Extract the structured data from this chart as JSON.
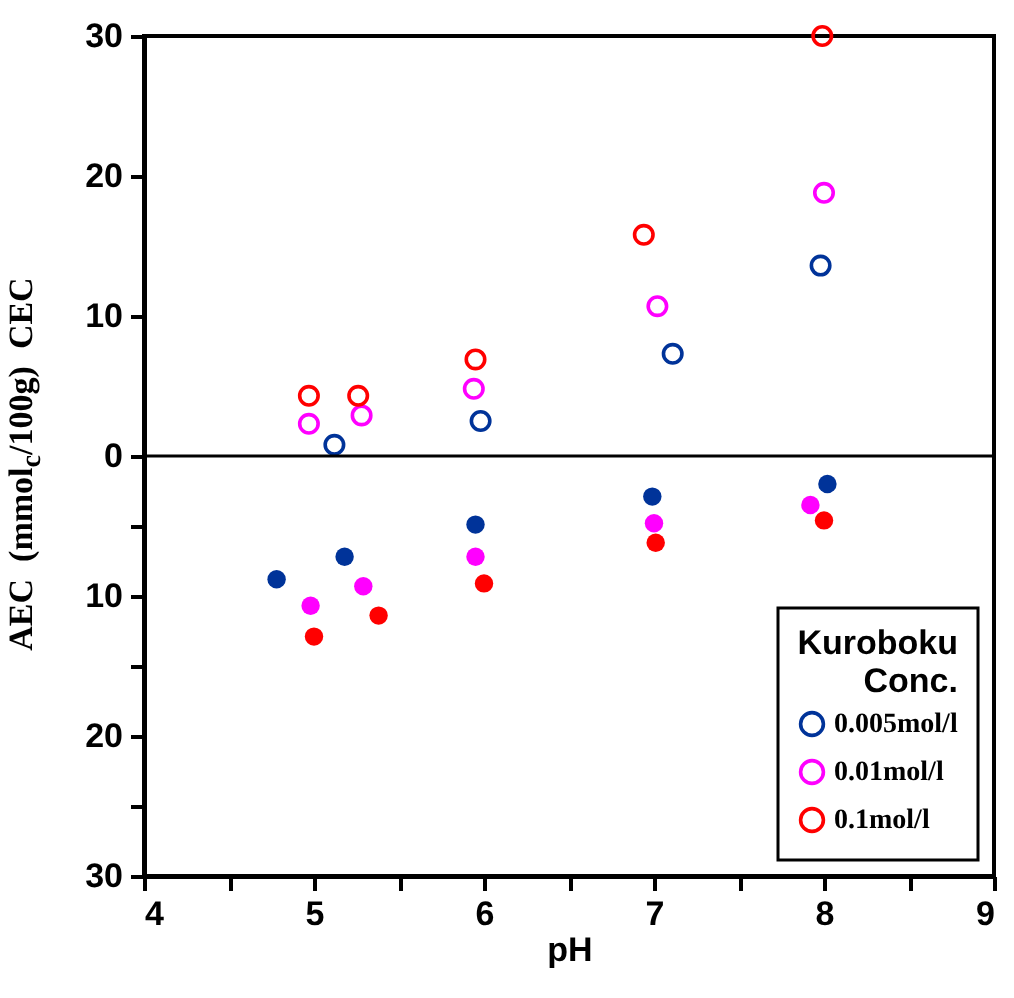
{
  "chart_data": {
    "type": "scatter",
    "xlabel": "pH",
    "ylabel": "AEC  (mmol$_{c}$/100g)  CEC",
    "legend_title": "Kuroboku\nConc.",
    "legend": "bottom right",
    "grid": false,
    "xlim": [
      4,
      9
    ],
    "xticks": [
      4,
      {
        "value": 4.5,
        "label": null
      },
      5,
      {
        "value": 5.5,
        "label": null
      },
      6,
      {
        "value": 6.5,
        "label": null
      },
      7,
      {
        "value": 7.5,
        "label": null
      },
      8,
      {
        "value": 8.5,
        "label": null
      },
      9
    ],
    "ylim": [
      -30,
      30
    ],
    "yticks": [
      {
        "value": -30,
        "label": "30"
      },
      {
        "value": -25,
        "label": null
      },
      {
        "value": -20,
        "label": "20"
      },
      {
        "value": -15,
        "label": null
      },
      {
        "value": -10,
        "label": "10"
      },
      {
        "value": -5,
        "label": null
      },
      0,
      10,
      20,
      30
    ],
    "ref_lines": [
      {
        "axis": "y",
        "value": 0,
        "color": "#000000"
      }
    ],
    "series": [
      {
        "name": "0.005mol/l",
        "color": "#003399",
        "marker": "circle-open",
        "x": [
          5.12,
          5.98,
          7.11,
          7.98
        ],
        "values": [
          0.8,
          2.5,
          7.3,
          13.6
        ]
      },
      {
        "name": "0.01mol/l",
        "color": "#ff00ff",
        "marker": "circle-open",
        "x": [
          4.97,
          5.28,
          5.94,
          7.02,
          8.0
        ],
        "values": [
          2.3,
          2.9,
          4.8,
          10.7,
          18.8
        ]
      },
      {
        "name": "0.1mol/l",
        "color": "#ff0000",
        "marker": "circle-open",
        "x": [
          4.97,
          5.26,
          5.95,
          6.94,
          7.99
        ],
        "values": [
          4.3,
          4.3,
          6.9,
          15.8,
          30
        ]
      },
      {
        "color": "#003399",
        "marker": "circle",
        "x": [
          4.78,
          5.18,
          5.95,
          6.99,
          8.02
        ],
        "values": [
          -8.8,
          -7.2,
          -4.9,
          -2.9,
          -2.0
        ]
      },
      {
        "color": "#ff00ff",
        "marker": "circle",
        "x": [
          4.98,
          5.29,
          5.95,
          7.0,
          7.92
        ],
        "values": [
          -10.7,
          -9.3,
          -7.2,
          -4.8,
          -3.5
        ]
      },
      {
        "color": "#ff0000",
        "marker": "circle",
        "x": [
          5.0,
          5.38,
          6.0,
          7.01,
          8.0
        ],
        "values": [
          -12.9,
          -11.4,
          -9.1,
          -6.2,
          -4.6
        ]
      }
    ]
  }
}
